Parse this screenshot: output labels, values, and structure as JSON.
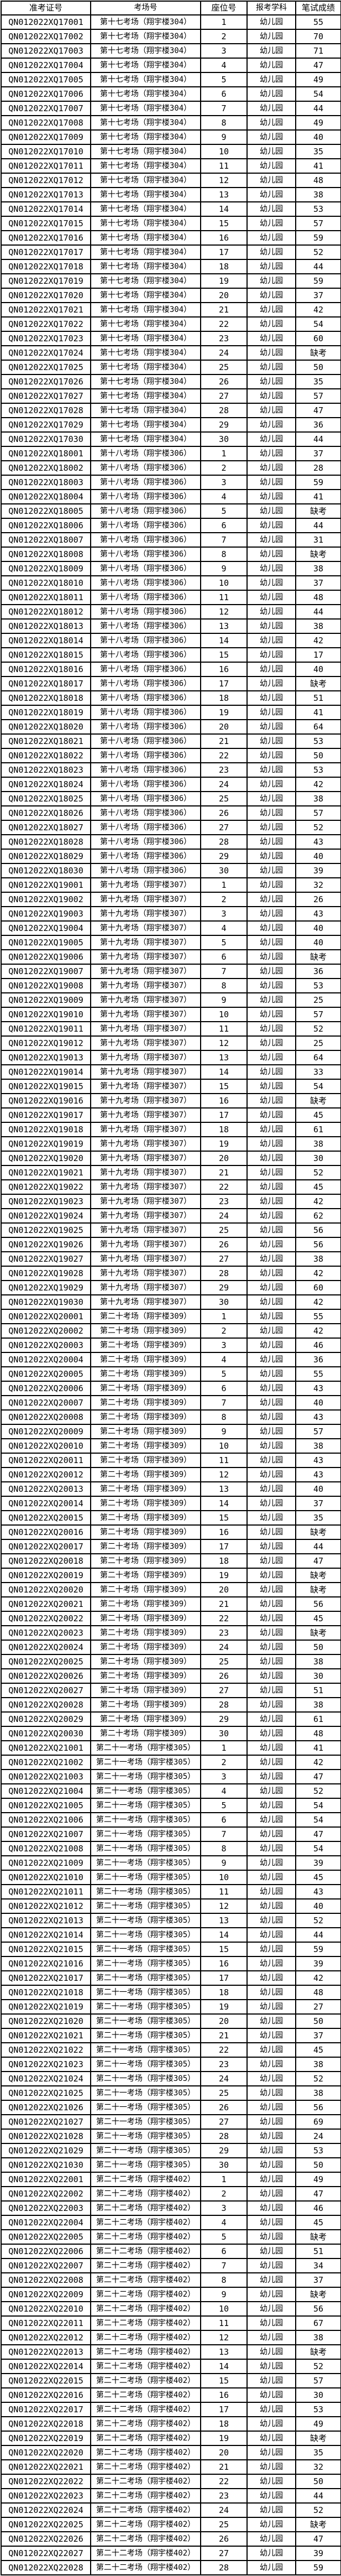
{
  "table": {
    "headers": [
      "准考证号",
      "考场号",
      "座位号",
      "报考学科",
      "笔试成绩"
    ],
    "rows": [
      [
        "QN012022XQ17001",
        "第十七考场（翔宇楼304）",
        1,
        "幼儿园",
        55
      ],
      [
        "QN012022XQ17002",
        "第十七考场（翔宇楼304）",
        2,
        "幼儿园",
        70
      ],
      [
        "QN012022XQ17003",
        "第十七考场（翔宇楼304）",
        3,
        "幼儿园",
        71
      ],
      [
        "QN012022XQ17004",
        "第十七考场（翔宇楼304）",
        4,
        "幼儿园",
        47
      ],
      [
        "QN012022XQ17005",
        "第十七考场（翔宇楼304）",
        5,
        "幼儿园",
        49
      ],
      [
        "QN012022XQ17006",
        "第十七考场（翔宇楼304）",
        6,
        "幼儿园",
        54
      ],
      [
        "QN012022XQ17007",
        "第十七考场（翔宇楼304）",
        7,
        "幼儿园",
        44
      ],
      [
        "QN012022XQ17008",
        "第十七考场（翔宇楼304）",
        8,
        "幼儿园",
        49
      ],
      [
        "QN012022XQ17009",
        "第十七考场（翔宇楼304）",
        9,
        "幼儿园",
        40
      ],
      [
        "QN012022XQ17010",
        "第十七考场（翔宇楼304）",
        10,
        "幼儿园",
        35
      ],
      [
        "QN012022XQ17011",
        "第十七考场（翔宇楼304）",
        11,
        "幼儿园",
        41
      ],
      [
        "QN012022XQ17012",
        "第十七考场（翔宇楼304）",
        12,
        "幼儿园",
        48
      ],
      [
        "QN012022XQ17013",
        "第十七考场（翔宇楼304）",
        13,
        "幼儿园",
        38
      ],
      [
        "QN012022XQ17014",
        "第十七考场（翔宇楼304）",
        14,
        "幼儿园",
        53
      ],
      [
        "QN012022XQ17015",
        "第十七考场（翔宇楼304）",
        15,
        "幼儿园",
        57
      ],
      [
        "QN012022XQ17016",
        "第十七考场（翔宇楼304）",
        16,
        "幼儿园",
        59
      ],
      [
        "QN012022XQ17017",
        "第十七考场（翔宇楼304）",
        17,
        "幼儿园",
        52
      ],
      [
        "QN012022XQ17018",
        "第十七考场（翔宇楼304）",
        18,
        "幼儿园",
        44
      ],
      [
        "QN012022XQ17019",
        "第十七考场（翔宇楼304）",
        19,
        "幼儿园",
        59
      ],
      [
        "QN012022XQ17020",
        "第十七考场（翔宇楼304）",
        20,
        "幼儿园",
        37
      ],
      [
        "QN012022XQ17021",
        "第十七考场（翔宇楼304）",
        21,
        "幼儿园",
        42
      ],
      [
        "QN012022XQ17022",
        "第十七考场（翔宇楼304）",
        22,
        "幼儿园",
        54
      ],
      [
        "QN012022XQ17023",
        "第十七考场（翔宇楼304）",
        23,
        "幼儿园",
        60
      ],
      [
        "QN012022XQ17024",
        "第十七考场（翔宇楼304）",
        24,
        "幼儿园",
        "缺考"
      ],
      [
        "QN012022XQ17025",
        "第十七考场（翔宇楼304）",
        25,
        "幼儿园",
        50
      ],
      [
        "QN012022XQ17026",
        "第十七考场（翔宇楼304）",
        26,
        "幼儿园",
        35
      ],
      [
        "QN012022XQ17027",
        "第十七考场（翔宇楼304）",
        27,
        "幼儿园",
        57
      ],
      [
        "QN012022XQ17028",
        "第十七考场（翔宇楼304）",
        28,
        "幼儿园",
        47
      ],
      [
        "QN012022XQ17029",
        "第十七考场（翔宇楼304）",
        29,
        "幼儿园",
        36
      ],
      [
        "QN012022XQ17030",
        "第十七考场（翔宇楼304）",
        30,
        "幼儿园",
        44
      ],
      [
        "QN012022XQ18001",
        "第十八考场（翔宇楼306）",
        1,
        "幼儿园",
        37
      ],
      [
        "QN012022XQ18002",
        "第十八考场（翔宇楼306）",
        2,
        "幼儿园",
        28
      ],
      [
        "QN012022XQ18003",
        "第十八考场（翔宇楼306）",
        3,
        "幼儿园",
        59
      ],
      [
        "QN012022XQ18004",
        "第十八考场（翔宇楼306）",
        4,
        "幼儿园",
        41
      ],
      [
        "QN012022XQ18005",
        "第十八考场（翔宇楼306）",
        5,
        "幼儿园",
        "缺考"
      ],
      [
        "QN012022XQ18006",
        "第十八考场（翔宇楼306）",
        6,
        "幼儿园",
        44
      ],
      [
        "QN012022XQ18007",
        "第十八考场（翔宇楼306）",
        7,
        "幼儿园",
        31
      ],
      [
        "QN012022XQ18008",
        "第十八考场（翔宇楼306）",
        8,
        "幼儿园",
        "缺考"
      ],
      [
        "QN012022XQ18009",
        "第十八考场（翔宇楼306）",
        9,
        "幼儿园",
        38
      ],
      [
        "QN012022XQ18010",
        "第十八考场（翔宇楼306）",
        10,
        "幼儿园",
        37
      ],
      [
        "QN012022XQ18011",
        "第十八考场（翔宇楼306）",
        11,
        "幼儿园",
        48
      ],
      [
        "QN012022XQ18012",
        "第十八考场（翔宇楼306）",
        12,
        "幼儿园",
        44
      ],
      [
        "QN012022XQ18013",
        "第十八考场（翔宇楼306）",
        13,
        "幼儿园",
        38
      ],
      [
        "QN012022XQ18014",
        "第十八考场（翔宇楼306）",
        14,
        "幼儿园",
        42
      ],
      [
        "QN012022XQ18015",
        "第十八考场（翔宇楼306）",
        15,
        "幼儿园",
        17
      ],
      [
        "QN012022XQ18016",
        "第十八考场（翔宇楼306）",
        16,
        "幼儿园",
        40
      ],
      [
        "QN012022XQ18017",
        "第十八考场（翔宇楼306）",
        17,
        "幼儿园",
        "缺考"
      ],
      [
        "QN012022XQ18018",
        "第十八考场（翔宇楼306）",
        18,
        "幼儿园",
        51
      ],
      [
        "QN012022XQ18019",
        "第十八考场（翔宇楼306）",
        19,
        "幼儿园",
        41
      ],
      [
        "QN012022XQ18020",
        "第十八考场（翔宇楼306）",
        20,
        "幼儿园",
        64
      ],
      [
        "QN012022XQ18021",
        "第十八考场（翔宇楼306）",
        21,
        "幼儿园",
        53
      ],
      [
        "QN012022XQ18022",
        "第十八考场（翔宇楼306）",
        22,
        "幼儿园",
        50
      ],
      [
        "QN012022XQ18023",
        "第十八考场（翔宇楼306）",
        23,
        "幼儿园",
        53
      ],
      [
        "QN012022XQ18024",
        "第十八考场（翔宇楼306）",
        24,
        "幼儿园",
        42
      ],
      [
        "QN012022XQ18025",
        "第十八考场（翔宇楼306）",
        25,
        "幼儿园",
        38
      ],
      [
        "QN012022XQ18026",
        "第十八考场（翔宇楼306）",
        26,
        "幼儿园",
        57
      ],
      [
        "QN012022XQ18027",
        "第十八考场（翔宇楼306）",
        27,
        "幼儿园",
        52
      ],
      [
        "QN012022XQ18028",
        "第十八考场（翔宇楼306）",
        28,
        "幼儿园",
        43
      ],
      [
        "QN012022XQ18029",
        "第十八考场（翔宇楼306）",
        29,
        "幼儿园",
        40
      ],
      [
        "QN012022XQ18030",
        "第十八考场（翔宇楼306）",
        30,
        "幼儿园",
        39
      ],
      [
        "QN012022XQ19001",
        "第十九考场（翔宇楼307）",
        1,
        "幼儿园",
        32
      ],
      [
        "QN012022XQ19002",
        "第十九考场（翔宇楼307）",
        2,
        "幼儿园",
        26
      ],
      [
        "QN012022XQ19003",
        "第十九考场（翔宇楼307）",
        3,
        "幼儿园",
        43
      ],
      [
        "QN012022XQ19004",
        "第十九考场（翔宇楼307）",
        4,
        "幼儿园",
        40
      ],
      [
        "QN012022XQ19005",
        "第十九考场（翔宇楼307）",
        5,
        "幼儿园",
        40
      ],
      [
        "QN012022XQ19006",
        "第十九考场（翔宇楼307）",
        6,
        "幼儿园",
        "缺考"
      ],
      [
        "QN012022XQ19007",
        "第十九考场（翔宇楼307）",
        7,
        "幼儿园",
        36
      ],
      [
        "QN012022XQ19008",
        "第十九考场（翔宇楼307）",
        8,
        "幼儿园",
        53
      ],
      [
        "QN012022XQ19009",
        "第十九考场（翔宇楼307）",
        9,
        "幼儿园",
        25
      ],
      [
        "QN012022XQ19010",
        "第十九考场（翔宇楼307）",
        10,
        "幼儿园",
        57
      ],
      [
        "QN012022XQ19011",
        "第十九考场（翔宇楼307）",
        11,
        "幼儿园",
        52
      ],
      [
        "QN012022XQ19012",
        "第十九考场（翔宇楼307）",
        12,
        "幼儿园",
        25
      ],
      [
        "QN012022XQ19013",
        "第十九考场（翔宇楼307）",
        13,
        "幼儿园",
        64
      ],
      [
        "QN012022XQ19014",
        "第十九考场（翔宇楼307）",
        14,
        "幼儿园",
        33
      ],
      [
        "QN012022XQ19015",
        "第十九考场（翔宇楼307）",
        15,
        "幼儿园",
        54
      ],
      [
        "QN012022XQ19016",
        "第十九考场（翔宇楼307）",
        16,
        "幼儿园",
        "缺考"
      ],
      [
        "QN012022XQ19017",
        "第十九考场（翔宇楼307）",
        17,
        "幼儿园",
        45
      ],
      [
        "QN012022XQ19018",
        "第十九考场（翔宇楼307）",
        18,
        "幼儿园",
        61
      ],
      [
        "QN012022XQ19019",
        "第十九考场（翔宇楼307）",
        19,
        "幼儿园",
        38
      ],
      [
        "QN012022XQ19020",
        "第十九考场（翔宇楼307）",
        20,
        "幼儿园",
        30
      ],
      [
        "QN012022XQ19021",
        "第十九考场（翔宇楼307）",
        21,
        "幼儿园",
        52
      ],
      [
        "QN012022XQ19022",
        "第十九考场（翔宇楼307）",
        22,
        "幼儿园",
        45
      ],
      [
        "QN012022XQ19023",
        "第十九考场（翔宇楼307）",
        23,
        "幼儿园",
        42
      ],
      [
        "QN012022XQ19024",
        "第十九考场（翔宇楼307）",
        24,
        "幼儿园",
        62
      ],
      [
        "QN012022XQ19025",
        "第十九考场（翔宇楼307）",
        25,
        "幼儿园",
        56
      ],
      [
        "QN012022XQ19026",
        "第十九考场（翔宇楼307）",
        26,
        "幼儿园",
        56
      ],
      [
        "QN012022XQ19027",
        "第十九考场（翔宇楼307）",
        27,
        "幼儿园",
        38
      ],
      [
        "QN012022XQ19028",
        "第十九考场（翔宇楼307）",
        28,
        "幼儿园",
        42
      ],
      [
        "QN012022XQ19029",
        "第十九考场（翔宇楼307）",
        29,
        "幼儿园",
        60
      ],
      [
        "QN012022XQ19030",
        "第十九考场（翔宇楼307）",
        30,
        "幼儿园",
        42
      ],
      [
        "QN012022XQ20001",
        "第二十考场（翔宇楼309）",
        1,
        "幼儿园",
        55
      ],
      [
        "QN012022XQ20002",
        "第二十考场（翔宇楼309）",
        2,
        "幼儿园",
        42
      ],
      [
        "QN012022XQ20003",
        "第二十考场（翔宇楼309）",
        3,
        "幼儿园",
        46
      ],
      [
        "QN012022XQ20004",
        "第二十考场（翔宇楼309）",
        4,
        "幼儿园",
        36
      ],
      [
        "QN012022XQ20005",
        "第二十考场（翔宇楼309）",
        5,
        "幼儿园",
        55
      ],
      [
        "QN012022XQ20006",
        "第二十考场（翔宇楼309）",
        6,
        "幼儿园",
        43
      ],
      [
        "QN012022XQ20007",
        "第二十考场（翔宇楼309）",
        7,
        "幼儿园",
        40
      ],
      [
        "QN012022XQ20008",
        "第二十考场（翔宇楼309）",
        8,
        "幼儿园",
        43
      ],
      [
        "QN012022XQ20009",
        "第二十考场（翔宇楼309）",
        9,
        "幼儿园",
        57
      ],
      [
        "QN012022XQ20010",
        "第二十考场（翔宇楼309）",
        10,
        "幼儿园",
        38
      ],
      [
        "QN012022XQ20011",
        "第二十考场（翔宇楼309）",
        11,
        "幼儿园",
        43
      ],
      [
        "QN012022XQ20012",
        "第二十考场（翔宇楼309）",
        12,
        "幼儿园",
        43
      ],
      [
        "QN012022XQ20013",
        "第二十考场（翔宇楼309）",
        13,
        "幼儿园",
        40
      ],
      [
        "QN012022XQ20014",
        "第二十考场（翔宇楼309）",
        14,
        "幼儿园",
        37
      ],
      [
        "QN012022XQ20015",
        "第二十考场（翔宇楼309）",
        15,
        "幼儿园",
        35
      ],
      [
        "QN012022XQ20016",
        "第二十考场（翔宇楼309）",
        16,
        "幼儿园",
        "缺考"
      ],
      [
        "QN012022XQ20017",
        "第二十考场（翔宇楼309）",
        17,
        "幼儿园",
        44
      ],
      [
        "QN012022XQ20018",
        "第二十考场（翔宇楼309）",
        18,
        "幼儿园",
        47
      ],
      [
        "QN012022XQ20019",
        "第二十考场（翔宇楼309）",
        19,
        "幼儿园",
        "缺考"
      ],
      [
        "QN012022XQ20020",
        "第二十考场（翔宇楼309）",
        20,
        "幼儿园",
        "缺考"
      ],
      [
        "QN012022XQ20021",
        "第二十考场（翔宇楼309）",
        21,
        "幼儿园",
        56
      ],
      [
        "QN012022XQ20022",
        "第二十考场（翔宇楼309）",
        22,
        "幼儿园",
        45
      ],
      [
        "QN012022XQ20023",
        "第二十考场（翔宇楼309）",
        23,
        "幼儿园",
        "缺考"
      ],
      [
        "QN012022XQ20024",
        "第二十考场（翔宇楼309）",
        24,
        "幼儿园",
        50
      ],
      [
        "QN012022XQ20025",
        "第二十考场（翔宇楼309）",
        25,
        "幼儿园",
        38
      ],
      [
        "QN012022XQ20026",
        "第二十考场（翔宇楼309）",
        26,
        "幼儿园",
        30
      ],
      [
        "QN012022XQ20027",
        "第二十考场（翔宇楼309）",
        27,
        "幼儿园",
        51
      ],
      [
        "QN012022XQ20028",
        "第二十考场（翔宇楼309）",
        28,
        "幼儿园",
        38
      ],
      [
        "QN012022XQ20029",
        "第二十考场（翔宇楼309）",
        29,
        "幼儿园",
        61
      ],
      [
        "QN012022XQ20030",
        "第二十考场（翔宇楼309）",
        30,
        "幼儿园",
        48
      ],
      [
        "QN012022XQ21001",
        "第二十一考场（翔宇楼305）",
        1,
        "幼儿园",
        41
      ],
      [
        "QN012022XQ21002",
        "第二十一考场（翔宇楼305）",
        2,
        "幼儿园",
        42
      ],
      [
        "QN012022XQ21003",
        "第二十一考场（翔宇楼305）",
        3,
        "幼儿园",
        47
      ],
      [
        "QN012022XQ21004",
        "第二十一考场（翔宇楼305）",
        4,
        "幼儿园",
        52
      ],
      [
        "QN012022XQ21005",
        "第二十一考场（翔宇楼305）",
        5,
        "幼儿园",
        54
      ],
      [
        "QN012022XQ21006",
        "第二十一考场（翔宇楼305）",
        6,
        "幼儿园",
        54
      ],
      [
        "QN012022XQ21007",
        "第二十一考场（翔宇楼305）",
        7,
        "幼儿园",
        47
      ],
      [
        "QN012022XQ21008",
        "第二十一考场（翔宇楼305）",
        8,
        "幼儿园",
        54
      ],
      [
        "QN012022XQ21009",
        "第二十一考场（翔宇楼305）",
        9,
        "幼儿园",
        39
      ],
      [
        "QN012022XQ21010",
        "第二十一考场（翔宇楼305）",
        10,
        "幼儿园",
        45
      ],
      [
        "QN012022XQ21011",
        "第二十一考场（翔宇楼305）",
        11,
        "幼儿园",
        43
      ],
      [
        "QN012022XQ21012",
        "第二十一考场（翔宇楼305）",
        12,
        "幼儿园",
        40
      ],
      [
        "QN012022XQ21013",
        "第二十一考场（翔宇楼305）",
        13,
        "幼儿园",
        52
      ],
      [
        "QN012022XQ21014",
        "第二十一考场（翔宇楼305）",
        14,
        "幼儿园",
        44
      ],
      [
        "QN012022XQ21015",
        "第二十一考场（翔宇楼305）",
        15,
        "幼儿园",
        59
      ],
      [
        "QN012022XQ21016",
        "第二十一考场（翔宇楼305）",
        16,
        "幼儿园",
        39
      ],
      [
        "QN012022XQ21017",
        "第二十一考场（翔宇楼305）",
        17,
        "幼儿园",
        42
      ],
      [
        "QN012022XQ21018",
        "第二十一考场（翔宇楼305）",
        18,
        "幼儿园",
        48
      ],
      [
        "QN012022XQ21019",
        "第二十一考场（翔宇楼305）",
        19,
        "幼儿园",
        27
      ],
      [
        "QN012022XQ21020",
        "第二十一考场（翔宇楼305）",
        20,
        "幼儿园",
        50
      ],
      [
        "QN012022XQ21021",
        "第二十一考场（翔宇楼305）",
        21,
        "幼儿园",
        37
      ],
      [
        "QN012022XQ21022",
        "第二十一考场（翔宇楼305）",
        22,
        "幼儿园",
        45
      ],
      [
        "QN012022XQ21023",
        "第二十一考场（翔宇楼305）",
        23,
        "幼儿园",
        38
      ],
      [
        "QN012022XQ21024",
        "第二十一考场（翔宇楼305）",
        24,
        "幼儿园",
        52
      ],
      [
        "QN012022XQ21025",
        "第二十一考场（翔宇楼305）",
        25,
        "幼儿园",
        38
      ],
      [
        "QN012022XQ21026",
        "第二十一考场（翔宇楼305）",
        26,
        "幼儿园",
        56
      ],
      [
        "QN012022XQ21027",
        "第二十一考场（翔宇楼305）",
        27,
        "幼儿园",
        69
      ],
      [
        "QN012022XQ21028",
        "第二十一考场（翔宇楼305）",
        28,
        "幼儿园",
        24
      ],
      [
        "QN012022XQ21029",
        "第二十一考场（翔宇楼305）",
        29,
        "幼儿园",
        53
      ],
      [
        "QN012022XQ21030",
        "第二十一考场（翔宇楼305）",
        30,
        "幼儿园",
        50
      ],
      [
        "QN012022XQ22001",
        "第二十二考场（翔宇楼402）",
        1,
        "幼儿园",
        49
      ],
      [
        "QN012022XQ22002",
        "第二十二考场（翔宇楼402）",
        2,
        "幼儿园",
        47
      ],
      [
        "QN012022XQ22003",
        "第二十二考场（翔宇楼402）",
        3,
        "幼儿园",
        46
      ],
      [
        "QN012022XQ22004",
        "第二十二考场（翔宇楼402）",
        4,
        "幼儿园",
        45
      ],
      [
        "QN012022XQ22005",
        "第二十二考场（翔宇楼402）",
        5,
        "幼儿园",
        "缺考"
      ],
      [
        "QN012022XQ22006",
        "第二十二考场（翔宇楼402）",
        6,
        "幼儿园",
        51
      ],
      [
        "QN012022XQ22007",
        "第二十二考场（翔宇楼402）",
        7,
        "幼儿园",
        34
      ],
      [
        "QN012022XQ22008",
        "第二十二考场（翔宇楼402）",
        8,
        "幼儿园",
        37
      ],
      [
        "QN012022XQ22009",
        "第二十二考场（翔宇楼402）",
        9,
        "幼儿园",
        "缺考"
      ],
      [
        "QN012022XQ22010",
        "第二十二考场（翔宇楼402）",
        10,
        "幼儿园",
        56
      ],
      [
        "QN012022XQ22011",
        "第二十二考场（翔宇楼402）",
        11,
        "幼儿园",
        67
      ],
      [
        "QN012022XQ22012",
        "第二十二考场（翔宇楼402）",
        12,
        "幼儿园",
        38
      ],
      [
        "QN012022XQ22013",
        "第二十二考场（翔宇楼402）",
        13,
        "幼儿园",
        "缺考"
      ],
      [
        "QN012022XQ22014",
        "第二十二考场（翔宇楼402）",
        14,
        "幼儿园",
        52
      ],
      [
        "QN012022XQ22015",
        "第二十二考场（翔宇楼402）",
        15,
        "幼儿园",
        57
      ],
      [
        "QN012022XQ22016",
        "第二十二考场（翔宇楼402）",
        16,
        "幼儿园",
        30
      ],
      [
        "QN012022XQ22017",
        "第二十二考场（翔宇楼402）",
        17,
        "幼儿园",
        53
      ],
      [
        "QN012022XQ22018",
        "第二十二考场（翔宇楼402）",
        18,
        "幼儿园",
        49
      ],
      [
        "QN012022XQ22019",
        "第二十二考场（翔宇楼402）",
        19,
        "幼儿园",
        "缺考"
      ],
      [
        "QN012022XQ22020",
        "第二十二考场（翔宇楼402）",
        20,
        "幼儿园",
        35
      ],
      [
        "QN012022XQ22021",
        "第二十二考场（翔宇楼402）",
        21,
        "幼儿园",
        32
      ],
      [
        "QN012022XQ22022",
        "第二十二考场（翔宇楼402）",
        22,
        "幼儿园",
        50
      ],
      [
        "QN012022XQ22023",
        "第二十二考场（翔宇楼402）",
        23,
        "幼儿园",
        44
      ],
      [
        "QN012022XQ22024",
        "第二十二考场（翔宇楼402）",
        24,
        "幼儿园",
        52
      ],
      [
        "QN012022XQ22025",
        "第二十二考场（翔宇楼402）",
        25,
        "幼儿园",
        "缺考"
      ],
      [
        "QN012022XQ22026",
        "第二十二考场（翔宇楼402）",
        26,
        "幼儿园",
        47
      ],
      [
        "QN012022XQ22027",
        "第二十二考场（翔宇楼402）",
        27,
        "幼儿园",
        39
      ],
      [
        "QN012022XQ22028",
        "第二十二考场（翔宇楼402）",
        28,
        "幼儿园",
        59
      ]
    ]
  }
}
